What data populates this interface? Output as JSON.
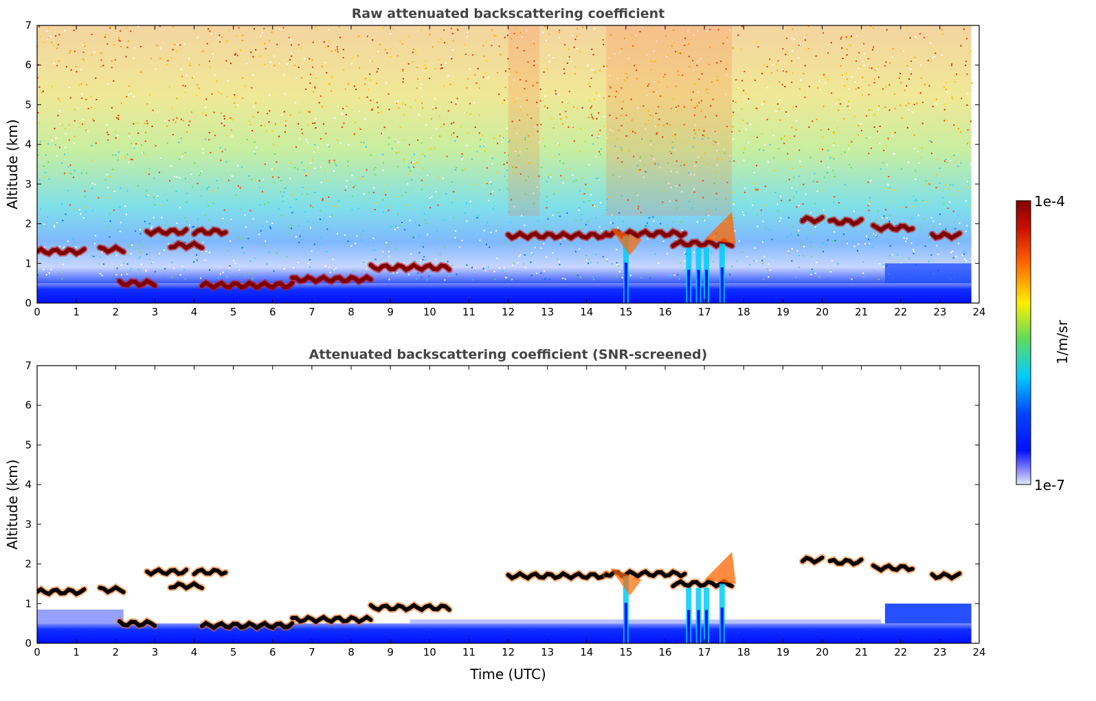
{
  "colors": {
    "low": "#e8e8ff",
    "blue": "#0010ff",
    "cyan": "#00ccff",
    "green": "#66dd55",
    "yellow": "#ffee00",
    "orange": "#ff6600",
    "red": "#cc1100",
    "darkred": "#800000",
    "title": "#444444"
  },
  "colorbar": {
    "max_label": "1e-4",
    "min_label": "1e-7",
    "unit_label": "1/m/sr",
    "scale": "log",
    "range": [
      1e-07,
      0.0001
    ],
    "colormap": "jet"
  },
  "chart_data": [
    {
      "type": "heatmap",
      "title": "Raw attenuated backscattering coefficient",
      "xlabel": "",
      "ylabel": "Altitude (km)",
      "xlim": [
        0,
        24
      ],
      "ylim": [
        0,
        7
      ],
      "xticks": [
        "0",
        "1",
        "2",
        "3",
        "4",
        "5",
        "6",
        "7",
        "8",
        "9",
        "10",
        "11",
        "12",
        "13",
        "14",
        "15",
        "16",
        "17",
        "18",
        "19",
        "20",
        "21",
        "22",
        "23",
        "24"
      ],
      "yticks": [
        "0",
        "1",
        "2",
        "3",
        "4",
        "5",
        "6",
        "7"
      ],
      "data_end_time": 23.8,
      "cloud_layers": [
        {
          "t0": 0.0,
          "t1": 1.2,
          "alt": 1.3
        },
        {
          "t0": 1.6,
          "t1": 2.2,
          "alt": 1.35
        },
        {
          "t0": 2.1,
          "t1": 3.0,
          "alt": 0.5
        },
        {
          "t0": 2.8,
          "t1": 3.8,
          "alt": 1.8
        },
        {
          "t0": 3.4,
          "t1": 4.2,
          "alt": 1.45
        },
        {
          "t0": 4.0,
          "t1": 4.8,
          "alt": 1.8
        },
        {
          "t0": 4.2,
          "t1": 6.5,
          "alt": 0.45
        },
        {
          "t0": 6.5,
          "t1": 8.5,
          "alt": 0.6
        },
        {
          "t0": 8.5,
          "t1": 10.5,
          "alt": 0.9
        },
        {
          "t0": 12.0,
          "t1": 14.5,
          "alt": 1.7
        },
        {
          "t0": 14.5,
          "t1": 16.5,
          "alt": 1.75
        },
        {
          "t0": 16.2,
          "t1": 17.7,
          "alt": 1.5
        },
        {
          "t0": 19.5,
          "t1": 20.0,
          "alt": 2.1
        },
        {
          "t0": 20.2,
          "t1": 21.0,
          "alt": 2.05
        },
        {
          "t0": 21.3,
          "t1": 22.3,
          "alt": 1.9
        },
        {
          "t0": 22.8,
          "t1": 23.5,
          "alt": 1.7
        }
      ]
    },
    {
      "type": "heatmap",
      "title": "Attenuated backscattering coefficient (SNR-screened)",
      "xlabel": "Time (UTC)",
      "ylabel": "Altitude (km)",
      "xlim": [
        0,
        24
      ],
      "ylim": [
        0,
        7
      ],
      "xticks": [
        "0",
        "1",
        "2",
        "3",
        "4",
        "5",
        "6",
        "7",
        "8",
        "9",
        "10",
        "11",
        "12",
        "13",
        "14",
        "15",
        "16",
        "17",
        "18",
        "19",
        "20",
        "21",
        "22",
        "23",
        "24"
      ],
      "yticks": [
        "0",
        "1",
        "2",
        "3",
        "4",
        "5",
        "6",
        "7"
      ],
      "data_end_time": 23.8
    }
  ]
}
